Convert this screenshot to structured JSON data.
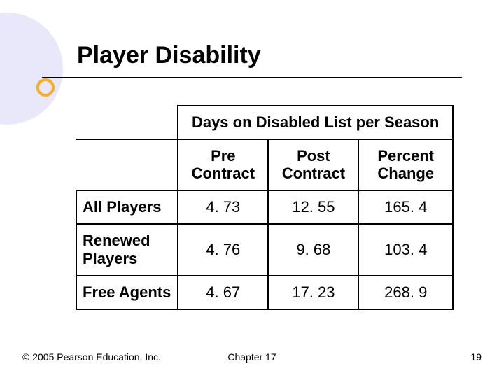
{
  "title": "Player Disability",
  "table": {
    "super_header": "Days on Disabled List per Season",
    "columns": [
      "Pre Contract",
      "Post Contract",
      "Percent Change"
    ],
    "rows": [
      {
        "label": "All Players",
        "values": [
          "4. 73",
          "12. 55",
          "165. 4"
        ]
      },
      {
        "label": "Renewed Players",
        "values": [
          "4. 76",
          "9. 68",
          "103. 4"
        ]
      },
      {
        "label": "Free Agents",
        "values": [
          "4. 67",
          "17. 23",
          "268. 9"
        ]
      }
    ],
    "col_widths_pct": [
      27,
      24,
      24,
      25
    ]
  },
  "footer": {
    "copyright": "© 2005 Pearson Education, Inc.",
    "chapter": "Chapter 17",
    "page": "19"
  },
  "style": {
    "background": "#ffffff",
    "accent_circle": "#d6d6f5",
    "bullet_ring": "#f0ad3a",
    "title_fontsize": 34,
    "cell_fontsize": 22,
    "footer_fontsize": 14,
    "border_color": "#000000"
  }
}
